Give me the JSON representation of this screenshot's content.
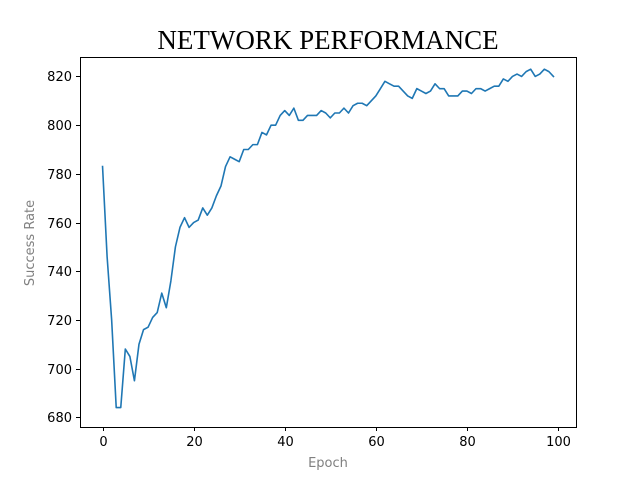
{
  "chart_data": {
    "type": "line",
    "title": "NETWORK PERFORMANCE",
    "xlabel": "Epoch",
    "ylabel": "Success Rate",
    "xlim": [
      -4.95,
      103.95
    ],
    "ylim": [
      676,
      828
    ],
    "xticks": [
      0,
      20,
      40,
      60,
      80,
      100
    ],
    "yticks": [
      680,
      700,
      720,
      740,
      760,
      780,
      800,
      820
    ],
    "grid": false,
    "line_color": "#1f77b4",
    "series": [
      {
        "x": [
          0,
          1,
          2,
          3,
          4,
          5,
          6,
          7,
          8,
          9,
          10,
          11,
          12,
          13,
          14,
          15,
          16,
          17,
          18,
          19,
          20,
          21,
          22,
          23,
          24,
          25,
          26,
          27,
          28,
          29,
          30,
          31,
          32,
          33,
          34,
          35,
          36,
          37,
          38,
          39,
          40,
          41,
          42,
          43,
          44,
          45,
          46,
          47,
          48,
          49,
          50,
          51,
          52,
          53,
          54,
          55,
          56,
          57,
          58,
          59,
          60,
          61,
          62,
          63,
          64,
          65,
          66,
          67,
          68,
          69,
          70,
          71,
          72,
          73,
          74,
          75,
          76,
          77,
          78,
          79,
          80,
          81,
          82,
          83,
          84,
          85,
          86,
          87,
          88,
          89,
          90,
          91,
          92,
          93,
          94,
          95,
          96,
          97,
          98,
          99
        ],
        "values": [
          783,
          746,
          720,
          684,
          684,
          708,
          705,
          695,
          710,
          716,
          717,
          721,
          723,
          731,
          725,
          736,
          750,
          758,
          762,
          758,
          760,
          761,
          766,
          763,
          766,
          771,
          775,
          783,
          787,
          786,
          785,
          790,
          790,
          792,
          792,
          797,
          796,
          800,
          800,
          804,
          806,
          804,
          807,
          802,
          802,
          804,
          804,
          804,
          806,
          805,
          803,
          805,
          805,
          807,
          805,
          808,
          809,
          809,
          808,
          810,
          812,
          815,
          818,
          817,
          816,
          816,
          814,
          812,
          811,
          815,
          814,
          813,
          814,
          817,
          815,
          815,
          812,
          812,
          812,
          814,
          814,
          813,
          815,
          815,
          814,
          815,
          816,
          816,
          819,
          818,
          820,
          821,
          820,
          822,
          823,
          820,
          821,
          823,
          822,
          820
        ]
      }
    ]
  }
}
